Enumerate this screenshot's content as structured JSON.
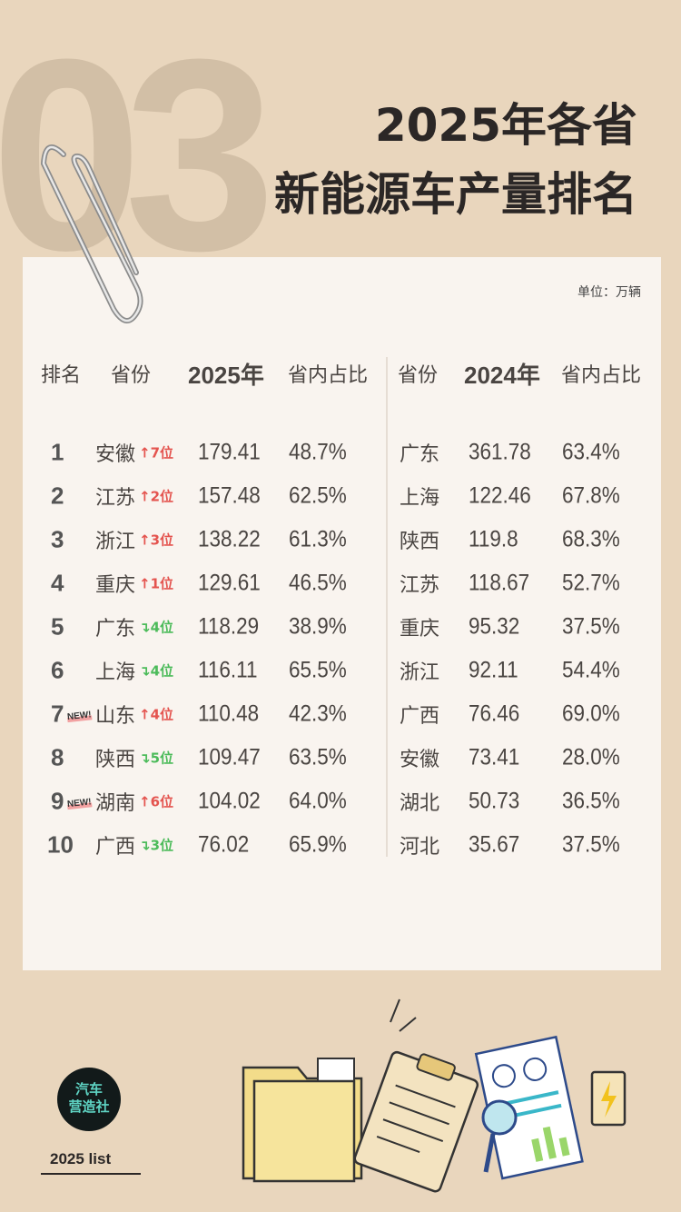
{
  "header": {
    "watermark": "03",
    "title_line1": "2025年各省",
    "title_line2": "新能源车产量排名"
  },
  "table": {
    "unit": "单位：万辆",
    "headers": {
      "rank": "排名",
      "province_2025": "省份",
      "value_2025": "2025年",
      "share_2025": "省内占比",
      "province_2024": "省份",
      "value_2024": "2024年",
      "share_2024": "省内占比"
    },
    "rows_2025": [
      {
        "rank": "1",
        "province": "安徽",
        "change": "7位",
        "direction": "up",
        "new": false,
        "value": "179.41",
        "share": "48.7%"
      },
      {
        "rank": "2",
        "province": "江苏",
        "change": "2位",
        "direction": "up",
        "new": false,
        "value": "157.48",
        "share": "62.5%"
      },
      {
        "rank": "3",
        "province": "浙江",
        "change": "3位",
        "direction": "up",
        "new": false,
        "value": "138.22",
        "share": "61.3%"
      },
      {
        "rank": "4",
        "province": "重庆",
        "change": "1位",
        "direction": "up",
        "new": false,
        "value": "129.61",
        "share": "46.5%"
      },
      {
        "rank": "5",
        "province": "广东",
        "change": "4位",
        "direction": "down",
        "new": false,
        "value": "118.29",
        "share": "38.9%"
      },
      {
        "rank": "6",
        "province": "上海",
        "change": "4位",
        "direction": "down",
        "new": false,
        "value": "116.11",
        "share": "65.5%"
      },
      {
        "rank": "7",
        "province": "山东",
        "change": "4位",
        "direction": "up",
        "new": true,
        "value": "110.48",
        "share": "42.3%"
      },
      {
        "rank": "8",
        "province": "陕西",
        "change": "5位",
        "direction": "down",
        "new": false,
        "value": "109.47",
        "share": "63.5%"
      },
      {
        "rank": "9",
        "province": "湖南",
        "change": "6位",
        "direction": "up",
        "new": true,
        "value": "104.02",
        "share": "64.0%"
      },
      {
        "rank": "10",
        "province": "广西",
        "change": "3位",
        "direction": "down",
        "new": false,
        "value": "76.02",
        "share": "65.9%"
      }
    ],
    "rows_2024": [
      {
        "province": "广东",
        "value": "361.78",
        "share": "63.4%"
      },
      {
        "province": "上海",
        "value": "122.46",
        "share": "67.8%"
      },
      {
        "province": "陕西",
        "value": "119.8",
        "share": "68.3%"
      },
      {
        "province": "江苏",
        "value": "118.67",
        "share": "52.7%"
      },
      {
        "province": "重庆",
        "value": "95.32",
        "share": "37.5%"
      },
      {
        "province": "浙江",
        "value": "92.11",
        "share": "54.4%"
      },
      {
        "province": "广西",
        "value": "76.46",
        "share": "69.0%"
      },
      {
        "province": "安徽",
        "value": "73.41",
        "share": "28.0%"
      },
      {
        "province": "湖北",
        "value": "50.73",
        "share": "36.5%"
      },
      {
        "province": "河北",
        "value": "35.67",
        "share": "37.5%"
      }
    ],
    "new_label": "NEW!"
  },
  "footer": {
    "logo_line1": "汽车",
    "logo_line2": "营造社",
    "list_label": "2025  list"
  },
  "colors": {
    "up": "#e4544f",
    "down": "#4cbb5a",
    "background": "#e9d6bd",
    "card": "#f9f4ef"
  }
}
